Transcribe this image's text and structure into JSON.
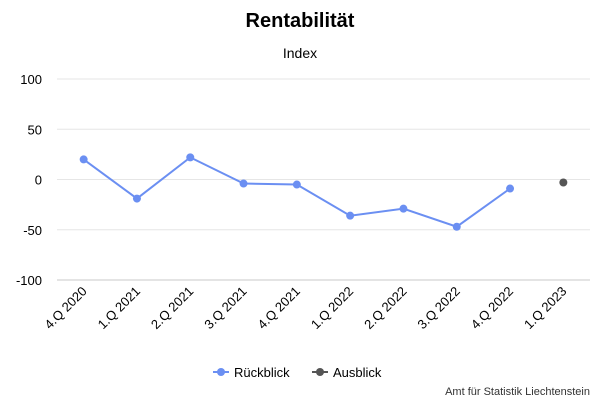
{
  "chart_data": {
    "type": "line",
    "title": "Rentabilität",
    "subtitle": "Index",
    "xlabel": "",
    "ylabel": "",
    "categories": [
      "4.Q 2020",
      "1.Q 2021",
      "2.Q 2021",
      "3.Q 2021",
      "4.Q 2021",
      "1.Q 2022",
      "2.Q 2022",
      "3.Q 2022",
      "4.Q 2022",
      "1.Q 2023"
    ],
    "ylim": [
      -100,
      100
    ],
    "yticks": [
      100,
      50,
      0,
      -50,
      -100
    ],
    "grid": true,
    "legend_position": "bottom-center",
    "series": [
      {
        "name": "Rückblick",
        "color": "#6b8ff2",
        "values": [
          20,
          -19,
          22,
          -4,
          -5,
          -36,
          -29,
          -47,
          -9,
          null
        ]
      },
      {
        "name": "Ausblick",
        "color": "#555555",
        "values": [
          null,
          null,
          null,
          null,
          null,
          null,
          null,
          null,
          null,
          -3
        ]
      }
    ],
    "credit": "Amt für Statistik Liechtenstein"
  }
}
